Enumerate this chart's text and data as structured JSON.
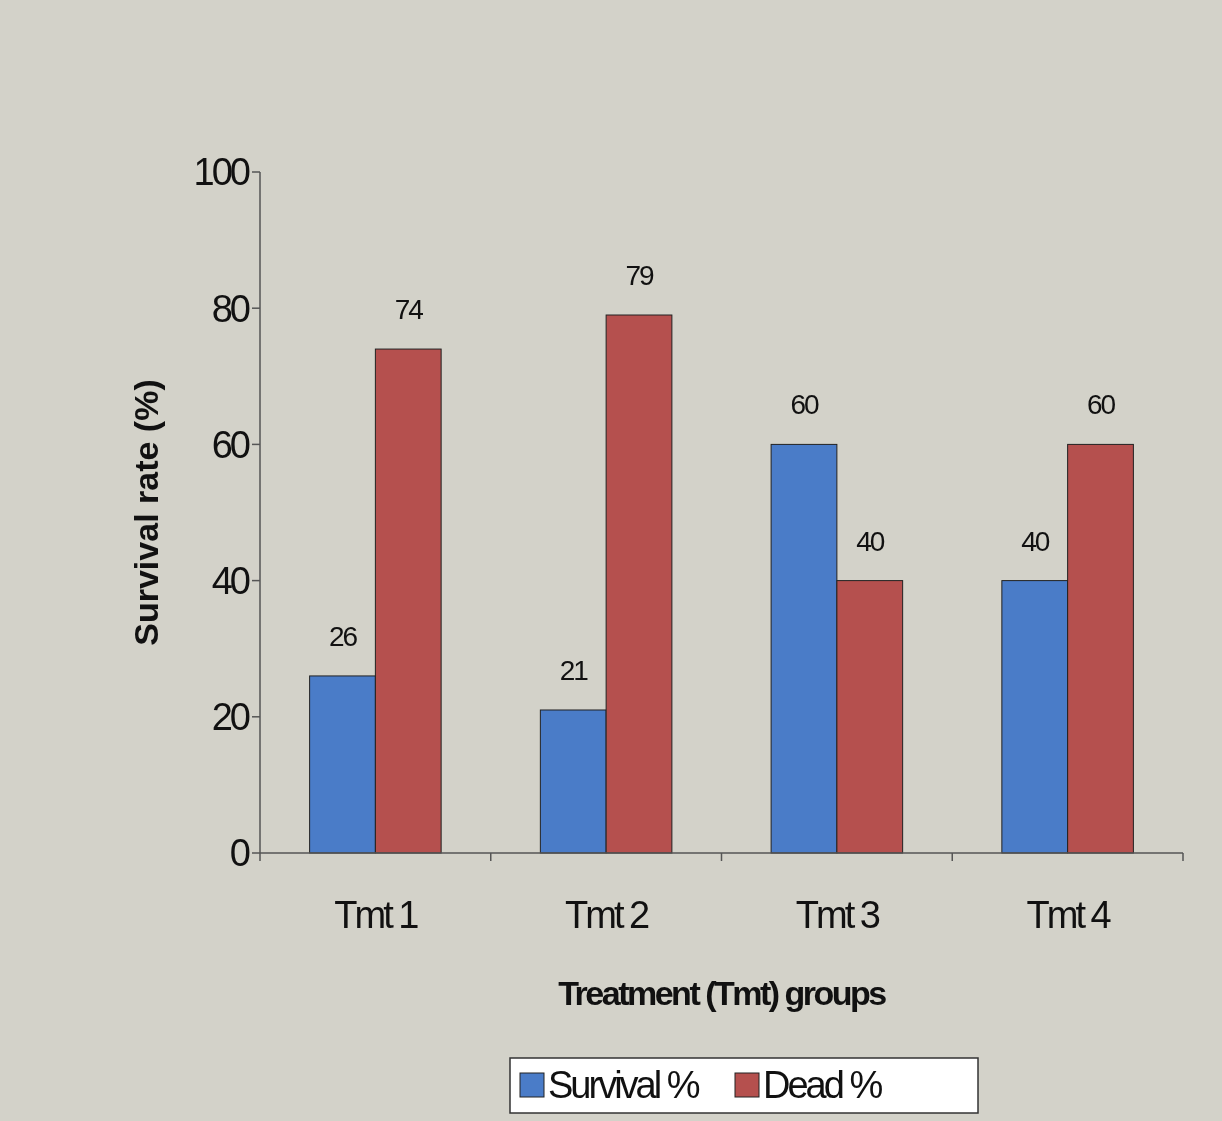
{
  "chart_data": {
    "type": "bar",
    "xlabel": "Treatment (Tmt) groups",
    "ylabel": "Survival rate (%)",
    "categories": [
      "Tmt 1",
      "Tmt 2",
      "Tmt 3",
      "Tmt 4"
    ],
    "series": [
      {
        "name": "Survival %",
        "color": "#4a7cc8",
        "values": [
          26,
          21,
          60,
          40
        ]
      },
      {
        "name": "Dead %",
        "color": "#b5504e",
        "values": [
          74,
          79,
          40,
          60
        ]
      }
    ],
    "ylim": [
      0,
      100
    ],
    "yticks": [
      0,
      20,
      40,
      60,
      80,
      100
    ],
    "grid": false,
    "legend": "bottom",
    "data_labels": true
  }
}
